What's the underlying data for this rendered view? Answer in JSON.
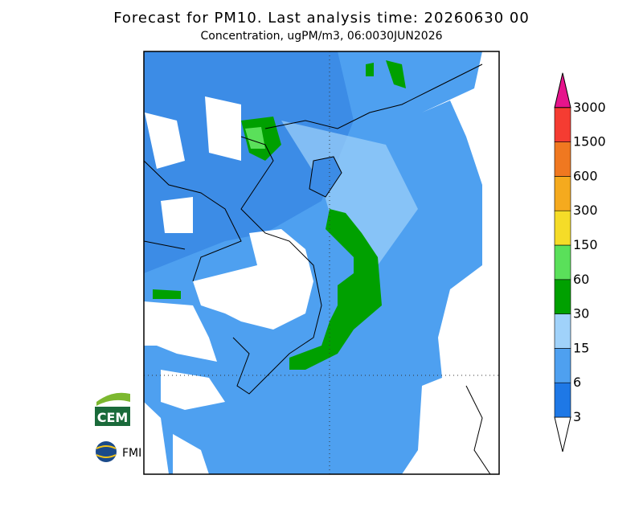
{
  "header": {
    "title": "Forecast for PM10. Last analysis time: 20260630 00",
    "subtitle": "Concentration, ugPM/m3, 06:0030JUN2026"
  },
  "legend": {
    "levels": [
      3,
      6,
      15,
      30,
      60,
      150,
      300,
      600,
      1500,
      3000
    ],
    "colors": [
      "#ffffff",
      "#1e78e6",
      "#4ea0f0",
      "#a0d2fa",
      "#00a000",
      "#5ae05a",
      "#f5dc28",
      "#f5aa1e",
      "#f07820",
      "#f53c32",
      "#e6148c"
    ]
  },
  "logos": {
    "cem": "CEM",
    "fmi": "FMI"
  }
}
